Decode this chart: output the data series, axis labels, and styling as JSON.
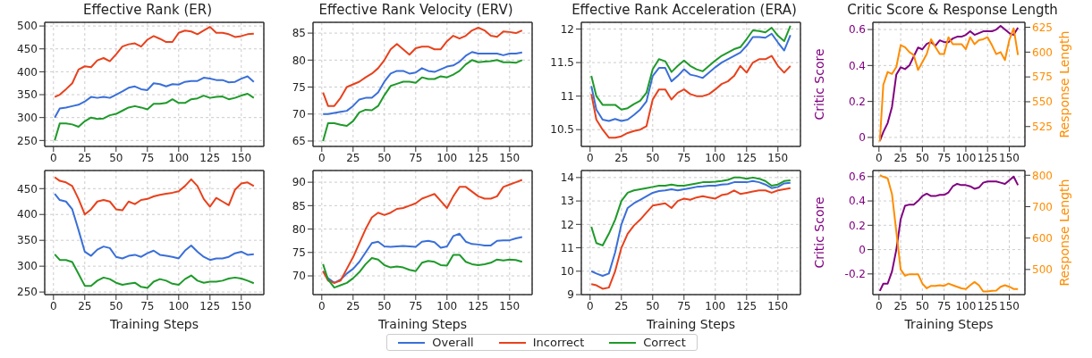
{
  "chart_data": [
    {
      "type": "line",
      "title": "Effective Rank (ER)",
      "x": [
        1,
        5,
        10,
        15,
        20,
        25,
        30,
        35,
        40,
        45,
        50,
        55,
        60,
        65,
        70,
        75,
        80,
        85,
        90,
        95,
        100,
        105,
        110,
        115,
        120,
        125,
        130,
        135,
        140,
        145,
        150,
        155,
        160
      ],
      "xlim": [
        -7,
        168
      ],
      "xticks": [
        0,
        25,
        50,
        75,
        100,
        125,
        150
      ],
      "ylim": [
        237,
        508
      ],
      "yticks": [
        250,
        300,
        350,
        400,
        450,
        500
      ],
      "grid": true,
      "series": [
        {
          "color": "#3a6fd8",
          "values": [
            300,
            320,
            322,
            325,
            328,
            335,
            345,
            343,
            345,
            343,
            350,
            357,
            365,
            368,
            362,
            360,
            375,
            373,
            368,
            373,
            372,
            378,
            380,
            380,
            387,
            385,
            382,
            382,
            377,
            378,
            385,
            390,
            378
          ]
        },
        {
          "color": "#e8411c",
          "values": [
            345,
            350,
            362,
            375,
            405,
            412,
            410,
            425,
            430,
            423,
            438,
            455,
            460,
            462,
            455,
            470,
            478,
            472,
            465,
            465,
            485,
            490,
            488,
            482,
            490,
            498,
            485,
            485,
            482,
            476,
            478,
            482,
            483
          ]
        },
        {
          "color": "#1e9a2a",
          "values": [
            250,
            287,
            287,
            285,
            280,
            292,
            300,
            297,
            298,
            305,
            308,
            315,
            322,
            325,
            322,
            318,
            330,
            330,
            332,
            340,
            332,
            332,
            340,
            342,
            348,
            343,
            345,
            346,
            340,
            343,
            348,
            352,
            343
          ]
        }
      ]
    },
    {
      "type": "line",
      "title": "Effective Rank Velocity (ERV)",
      "x": [
        1,
        5,
        10,
        15,
        20,
        25,
        30,
        35,
        40,
        45,
        50,
        55,
        60,
        65,
        70,
        75,
        80,
        85,
        90,
        95,
        100,
        105,
        110,
        115,
        120,
        125,
        130,
        135,
        140,
        145,
        150,
        155,
        160
      ],
      "xlim": [
        -7,
        168
      ],
      "xticks": [
        0,
        25,
        50,
        75,
        100,
        125,
        150
      ],
      "ylim": [
        64,
        87
      ],
      "yticks": [
        65,
        70,
        75,
        80,
        85
      ],
      "grid": true,
      "series": [
        {
          "color": "#3a6fd8",
          "values": [
            70,
            70,
            70.2,
            70.4,
            70.6,
            71.5,
            72.7,
            73,
            73,
            74,
            76,
            77.5,
            78,
            78,
            77.5,
            77.7,
            78.5,
            78,
            77.8,
            78.3,
            78.8,
            79,
            79.7,
            80.8,
            81.5,
            81.2,
            81.2,
            81.2,
            81.2,
            80.9,
            81.2,
            81.2,
            81.4
          ]
        },
        {
          "color": "#e8411c",
          "values": [
            74,
            71.5,
            71.5,
            73,
            75,
            75.5,
            76,
            76.8,
            77.5,
            78.5,
            80,
            82,
            83,
            82,
            81,
            82.2,
            82.5,
            82.5,
            82,
            82,
            83.5,
            84.5,
            84,
            84.5,
            85.5,
            86,
            85.5,
            84.5,
            84.3,
            85.3,
            85.2,
            85,
            85.5
          ]
        },
        {
          "color": "#1e9a2a",
          "values": [
            65,
            68.3,
            68.3,
            68,
            67.8,
            68.7,
            70.3,
            70.8,
            70.7,
            71.5,
            73.5,
            75.2,
            75.6,
            76,
            76,
            75.8,
            76.8,
            76.5,
            76.5,
            77,
            76.8,
            77.3,
            78,
            79.2,
            80,
            79.6,
            79.7,
            79.8,
            80,
            79.6,
            79.6,
            79.5,
            80
          ]
        }
      ]
    },
    {
      "type": "line",
      "title": "Effective Rank Acceleration (ERA)",
      "x": [
        1,
        5,
        10,
        15,
        20,
        25,
        30,
        35,
        40,
        45,
        50,
        55,
        60,
        65,
        70,
        75,
        80,
        85,
        90,
        95,
        100,
        105,
        110,
        115,
        120,
        125,
        130,
        135,
        140,
        145,
        150,
        155,
        160
      ],
      "xlim": [
        -7,
        168
      ],
      "xticks": [
        0,
        25,
        50,
        75,
        100,
        125,
        150
      ],
      "ylim": [
        10.25,
        12.1
      ],
      "yticks": [
        10.5,
        11,
        11.5,
        12
      ],
      "grid": true,
      "series": [
        {
          "color": "#3a6fd8",
          "values": [
            11.15,
            10.8,
            10.65,
            10.63,
            10.66,
            10.63,
            10.65,
            10.72,
            10.8,
            10.92,
            11.3,
            11.42,
            11.42,
            11.22,
            11.3,
            11.4,
            11.32,
            11.3,
            11.27,
            11.35,
            11.43,
            11.5,
            11.55,
            11.6,
            11.65,
            11.75,
            11.88,
            11.88,
            11.87,
            11.93,
            11.8,
            11.68,
            11.91
          ]
        },
        {
          "color": "#e8411c",
          "values": [
            11.03,
            10.65,
            10.5,
            10.38,
            10.38,
            10.4,
            10.45,
            10.48,
            10.5,
            10.55,
            10.95,
            11.1,
            11.1,
            10.95,
            11.05,
            11.1,
            11.03,
            11,
            11,
            11.03,
            11.1,
            11.18,
            11.22,
            11.3,
            11.45,
            11.35,
            11.5,
            11.55,
            11.55,
            11.6,
            11.45,
            11.35,
            11.45
          ]
        },
        {
          "color": "#1e9a2a",
          "values": [
            11.3,
            11,
            10.87,
            10.87,
            10.87,
            10.8,
            10.82,
            10.88,
            10.93,
            11.05,
            11.4,
            11.55,
            11.52,
            11.36,
            11.45,
            11.53,
            11.45,
            11.4,
            11.37,
            11.45,
            11.53,
            11.6,
            11.65,
            11.7,
            11.73,
            11.85,
            11.98,
            11.97,
            11.95,
            12.02,
            11.9,
            11.82,
            12.05
          ]
        }
      ]
    },
    {
      "type": "line",
      "title": "Critic Score & Response Length",
      "ylabel": "Critic Score",
      "y2label": "Response Length",
      "x": [
        1,
        5,
        10,
        15,
        20,
        25,
        30,
        35,
        40,
        45,
        50,
        55,
        60,
        65,
        70,
        75,
        80,
        85,
        90,
        95,
        100,
        105,
        110,
        115,
        120,
        125,
        130,
        135,
        140,
        145,
        150,
        155,
        160
      ],
      "xlim": [
        -7,
        168
      ],
      "xticks": [
        0,
        25,
        50,
        75,
        100,
        125,
        150
      ],
      "ylim": [
        -0.05,
        0.64
      ],
      "yticks": [
        0,
        0.2,
        0.4,
        0.6
      ],
      "y2lim": [
        505,
        630
      ],
      "y2ticks": [
        525,
        550,
        575,
        600,
        625
      ],
      "grid": true,
      "series": [
        {
          "color": "#800080",
          "values": [
            -0.02,
            0.03,
            0.08,
            0.17,
            0.35,
            0.39,
            0.38,
            0.4,
            0.45,
            0.5,
            0.49,
            0.52,
            0.53,
            0.51,
            0.54,
            0.53,
            0.53,
            0.55,
            0.56,
            0.56,
            0.57,
            0.59,
            0.57,
            0.58,
            0.59,
            0.59,
            0.59,
            0.6,
            0.62,
            0.6,
            0.58,
            0.57,
            0.61
          ]
        },
        {
          "color": "#ff8c00",
          "axis": "y2",
          "values": [
            510,
            567,
            580,
            578,
            585,
            607,
            605,
            600,
            597,
            582,
            590,
            598,
            613,
            605,
            598,
            598,
            615,
            608,
            608,
            608,
            603,
            615,
            608,
            612,
            613,
            615,
            607,
            598,
            600,
            592,
            612,
            624,
            597
          ]
        }
      ]
    },
    {
      "type": "line",
      "xlabel": "Training Steps",
      "x": [
        1,
        5,
        10,
        15,
        20,
        25,
        30,
        35,
        40,
        45,
        50,
        55,
        60,
        65,
        70,
        75,
        80,
        85,
        90,
        95,
        100,
        105,
        110,
        115,
        120,
        125,
        130,
        135,
        140,
        145,
        150,
        155,
        160
      ],
      "xlim": [
        -7,
        168
      ],
      "xticks": [
        0,
        25,
        50,
        75,
        100,
        125,
        150
      ],
      "ylim": [
        245,
        485
      ],
      "yticks": [
        250,
        300,
        350,
        400,
        450
      ],
      "grid": true,
      "series": [
        {
          "color": "#3a6fd8",
          "values": [
            440,
            428,
            425,
            410,
            370,
            328,
            320,
            332,
            338,
            335,
            318,
            315,
            320,
            322,
            318,
            325,
            330,
            322,
            320,
            318,
            315,
            330,
            340,
            328,
            318,
            312,
            315,
            315,
            318,
            325,
            328,
            322,
            323
          ]
        },
        {
          "color": "#e8411c",
          "values": [
            472,
            465,
            462,
            455,
            430,
            400,
            410,
            425,
            428,
            425,
            410,
            408,
            425,
            420,
            428,
            430,
            435,
            438,
            440,
            442,
            445,
            455,
            468,
            455,
            430,
            415,
            432,
            425,
            418,
            448,
            460,
            462,
            455
          ]
        },
        {
          "color": "#1e9a2a",
          "values": [
            323,
            312,
            312,
            308,
            285,
            262,
            262,
            272,
            278,
            275,
            268,
            264,
            266,
            268,
            260,
            258,
            270,
            275,
            272,
            266,
            264,
            275,
            282,
            272,
            268,
            270,
            270,
            272,
            276,
            278,
            276,
            272,
            267
          ]
        }
      ]
    },
    {
      "type": "line",
      "xlabel": "Training Steps",
      "x": [
        1,
        5,
        10,
        15,
        20,
        25,
        30,
        35,
        40,
        45,
        50,
        55,
        60,
        65,
        70,
        75,
        80,
        85,
        90,
        95,
        100,
        105,
        110,
        115,
        120,
        125,
        130,
        135,
        140,
        145,
        150,
        155,
        160
      ],
      "xlim": [
        -7,
        168
      ],
      "xticks": [
        0,
        25,
        50,
        75,
        100,
        125,
        150
      ],
      "ylim": [
        66,
        92.5
      ],
      "yticks": [
        70,
        75,
        80,
        85,
        90
      ],
      "grid": true,
      "legend": "bottom",
      "series": [
        {
          "name": "Overall",
          "color": "#3a6fd8",
          "values": [
            71,
            69.5,
            68.5,
            69.2,
            70.5,
            71.5,
            73,
            75,
            77,
            77.3,
            76.3,
            76.2,
            76.3,
            76.4,
            76.3,
            76.2,
            77.3,
            77.5,
            77.2,
            76,
            76.3,
            78.5,
            79,
            77.3,
            76.8,
            76.7,
            76.5,
            76.5,
            77.5,
            77.6,
            77.6,
            78,
            78.3
          ]
        },
        {
          "name": "Incorrect",
          "color": "#e8411c",
          "values": [
            71,
            69,
            68.5,
            69,
            71.5,
            74,
            77,
            80,
            82.5,
            83.5,
            83,
            83.5,
            84.3,
            84.5,
            85,
            85.5,
            86.5,
            87,
            87.5,
            86,
            84.5,
            87,
            89,
            89,
            88,
            87,
            86.5,
            86.5,
            87,
            89,
            89.5,
            90,
            90.5
          ]
        },
        {
          "name": "Correct",
          "color": "#1e9a2a",
          "values": [
            72.5,
            69.2,
            67.5,
            68,
            68.5,
            69.5,
            70.8,
            72.5,
            73.8,
            73.5,
            72.3,
            71.8,
            72,
            71.8,
            71.3,
            71,
            72.8,
            73.2,
            73,
            72.3,
            72.2,
            74.5,
            74.5,
            73,
            72.5,
            72.3,
            72.5,
            72.8,
            73.5,
            73.3,
            73.5,
            73.4,
            73
          ]
        }
      ]
    },
    {
      "type": "line",
      "xlabel": "Training Steps",
      "x": [
        1,
        5,
        10,
        15,
        20,
        25,
        30,
        35,
        40,
        45,
        50,
        55,
        60,
        65,
        70,
        75,
        80,
        85,
        90,
        95,
        100,
        105,
        110,
        115,
        120,
        125,
        130,
        135,
        140,
        145,
        150,
        155,
        160
      ],
      "xlim": [
        -7,
        168
      ],
      "xticks": [
        0,
        25,
        50,
        75,
        100,
        125,
        150
      ],
      "ylim": [
        9,
        14.3
      ],
      "yticks": [
        9,
        10,
        11,
        12,
        13,
        14
      ],
      "grid": true,
      "series": [
        {
          "color": "#3a6fd8",
          "values": [
            10,
            9.9,
            9.8,
            9.9,
            10.8,
            12,
            12.7,
            12.9,
            13.05,
            13.2,
            13.35,
            13.42,
            13.45,
            13.5,
            13.45,
            13.5,
            13.55,
            13.6,
            13.62,
            13.65,
            13.65,
            13.7,
            13.72,
            13.8,
            13.8,
            13.8,
            13.85,
            13.8,
            13.7,
            13.55,
            13.6,
            13.75,
            13.78
          ]
        },
        {
          "color": "#e8411c",
          "values": [
            9.45,
            9.4,
            9.25,
            9.3,
            10,
            11,
            11.6,
            11.95,
            12.2,
            12.5,
            12.8,
            12.85,
            12.9,
            12.7,
            13,
            13.1,
            13.05,
            13.15,
            13.2,
            13.15,
            13.1,
            13.25,
            13.3,
            13.45,
            13.3,
            13.35,
            13.4,
            13.45,
            13.45,
            13.35,
            13.45,
            13.5,
            13.55
          ]
        },
        {
          "color": "#1e9a2a",
          "values": [
            11.9,
            11.2,
            11.1,
            11.6,
            12.2,
            13,
            13.35,
            13.45,
            13.5,
            13.55,
            13.6,
            13.65,
            13.65,
            13.7,
            13.65,
            13.65,
            13.7,
            13.75,
            13.8,
            13.8,
            13.82,
            13.85,
            13.9,
            14,
            14,
            13.95,
            14,
            13.95,
            13.85,
            13.65,
            13.7,
            13.85,
            13.88
          ]
        }
      ]
    },
    {
      "type": "line",
      "xlabel": "Training Steps",
      "ylabel": "Critic Score",
      "y2label": "Response Length",
      "x": [
        1,
        5,
        10,
        15,
        20,
        25,
        30,
        35,
        40,
        45,
        50,
        55,
        60,
        65,
        70,
        75,
        80,
        85,
        90,
        95,
        100,
        105,
        110,
        115,
        120,
        125,
        130,
        135,
        140,
        145,
        150,
        155,
        160
      ],
      "xlim": [
        -7,
        168
      ],
      "xticks": [
        0,
        25,
        50,
        75,
        100,
        125,
        150
      ],
      "ylim": [
        -0.37,
        0.65
      ],
      "yticks": [
        -0.2,
        0,
        0.2,
        0.4,
        0.6
      ],
      "y2lim": [
        420,
        815
      ],
      "y2ticks": [
        500,
        600,
        700,
        800
      ],
      "grid": true,
      "series": [
        {
          "color": "#800080",
          "values": [
            -0.34,
            -0.28,
            -0.28,
            -0.18,
            0,
            0.25,
            0.36,
            0.37,
            0.37,
            0.4,
            0.44,
            0.46,
            0.44,
            0.44,
            0.45,
            0.45,
            0.47,
            0.52,
            0.54,
            0.53,
            0.53,
            0.52,
            0.5,
            0.51,
            0.55,
            0.56,
            0.56,
            0.56,
            0.55,
            0.54,
            0.57,
            0.6,
            0.53
          ]
        },
        {
          "color": "#ff8c00",
          "axis": "y2",
          "values": [
            800,
            795,
            790,
            740,
            620,
            500,
            480,
            485,
            485,
            485,
            455,
            440,
            448,
            448,
            450,
            448,
            455,
            450,
            445,
            440,
            438,
            450,
            460,
            450,
            430,
            430,
            432,
            433,
            445,
            450,
            445,
            438,
            438
          ]
        }
      ]
    }
  ]
}
